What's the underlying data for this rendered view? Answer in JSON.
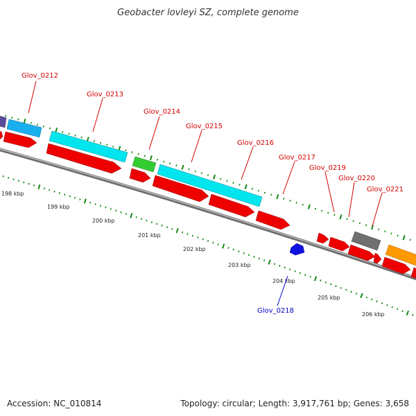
{
  "title": "Geobacter lovleyi SZ, complete genome",
  "accession": "Accession: NC_010814",
  "summary": "Topology: circular; Length: 3,917,761 bp; Genes: 3,658",
  "colors": {
    "forward_label": "#d40000",
    "reverse_label": "#0000c8",
    "red": "#ee0000",
    "cyan": "#00e5ee",
    "blue_light": "#1ab0f0",
    "green": "#33cc33",
    "gray": "#707070",
    "orange": "#ff9900",
    "purple": "#5a4a9a",
    "blue": "#1010e0",
    "backbone": "#888888",
    "tick": "#118811"
  },
  "scale_labels": [
    "198 kbp",
    "199 kbp",
    "200 kbp",
    "201 kbp",
    "202 kbp",
    "203 kbp",
    "204 kbp",
    "205 kbp",
    "206 kbp"
  ],
  "gene_labels": [
    {
      "text": "Glov_0212",
      "strand": "forward"
    },
    {
      "text": "Glov_0213",
      "strand": "forward"
    },
    {
      "text": "Glov_0214",
      "strand": "forward"
    },
    {
      "text": "Glov_0215",
      "strand": "forward"
    },
    {
      "text": "Glov_0216",
      "strand": "forward"
    },
    {
      "text": "Glov_0217",
      "strand": "forward"
    },
    {
      "text": "Glov_0219",
      "strand": "forward"
    },
    {
      "text": "Glov_0220",
      "strand": "forward"
    },
    {
      "text": "Glov_0221",
      "strand": "forward"
    },
    {
      "text": "Glov_0218",
      "strand": "reverse"
    }
  ]
}
